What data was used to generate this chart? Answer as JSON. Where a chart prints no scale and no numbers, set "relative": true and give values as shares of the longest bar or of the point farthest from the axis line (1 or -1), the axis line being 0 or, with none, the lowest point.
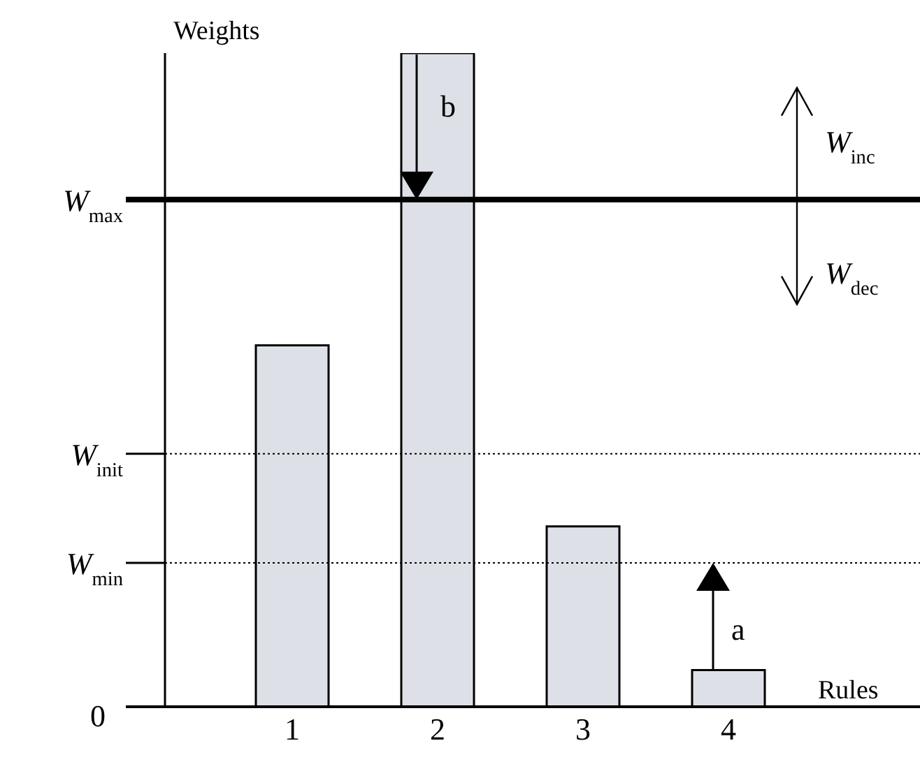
{
  "chart_data": {
    "type": "bar",
    "relative": true,
    "categories": [
      "1",
      "2",
      "3",
      "4"
    ],
    "values": [
      0.553,
      1,
      0.276,
      0.056
    ],
    "color": "#dde1e7",
    "ylabel": "Weights",
    "xlabel": "Rules",
    "ref_lines": [
      {
        "axis": "y",
        "value": 0.776,
        "label": "W$_{max}$",
        "line_style": "solid",
        "color": "#000000"
      },
      {
        "axis": "y",
        "value": 0.387,
        "label": "W$_{init}$",
        "line_style": "dotted",
        "color": "#000000"
      },
      {
        "axis": "y",
        "value": 0.22,
        "label": "W$_{min}$",
        "line_style": "dotted",
        "color": "#000000"
      }
    ],
    "annotations": [
      "0",
      "b",
      "a",
      "W$_{inc}$",
      "W$_{dec}$"
    ]
  }
}
